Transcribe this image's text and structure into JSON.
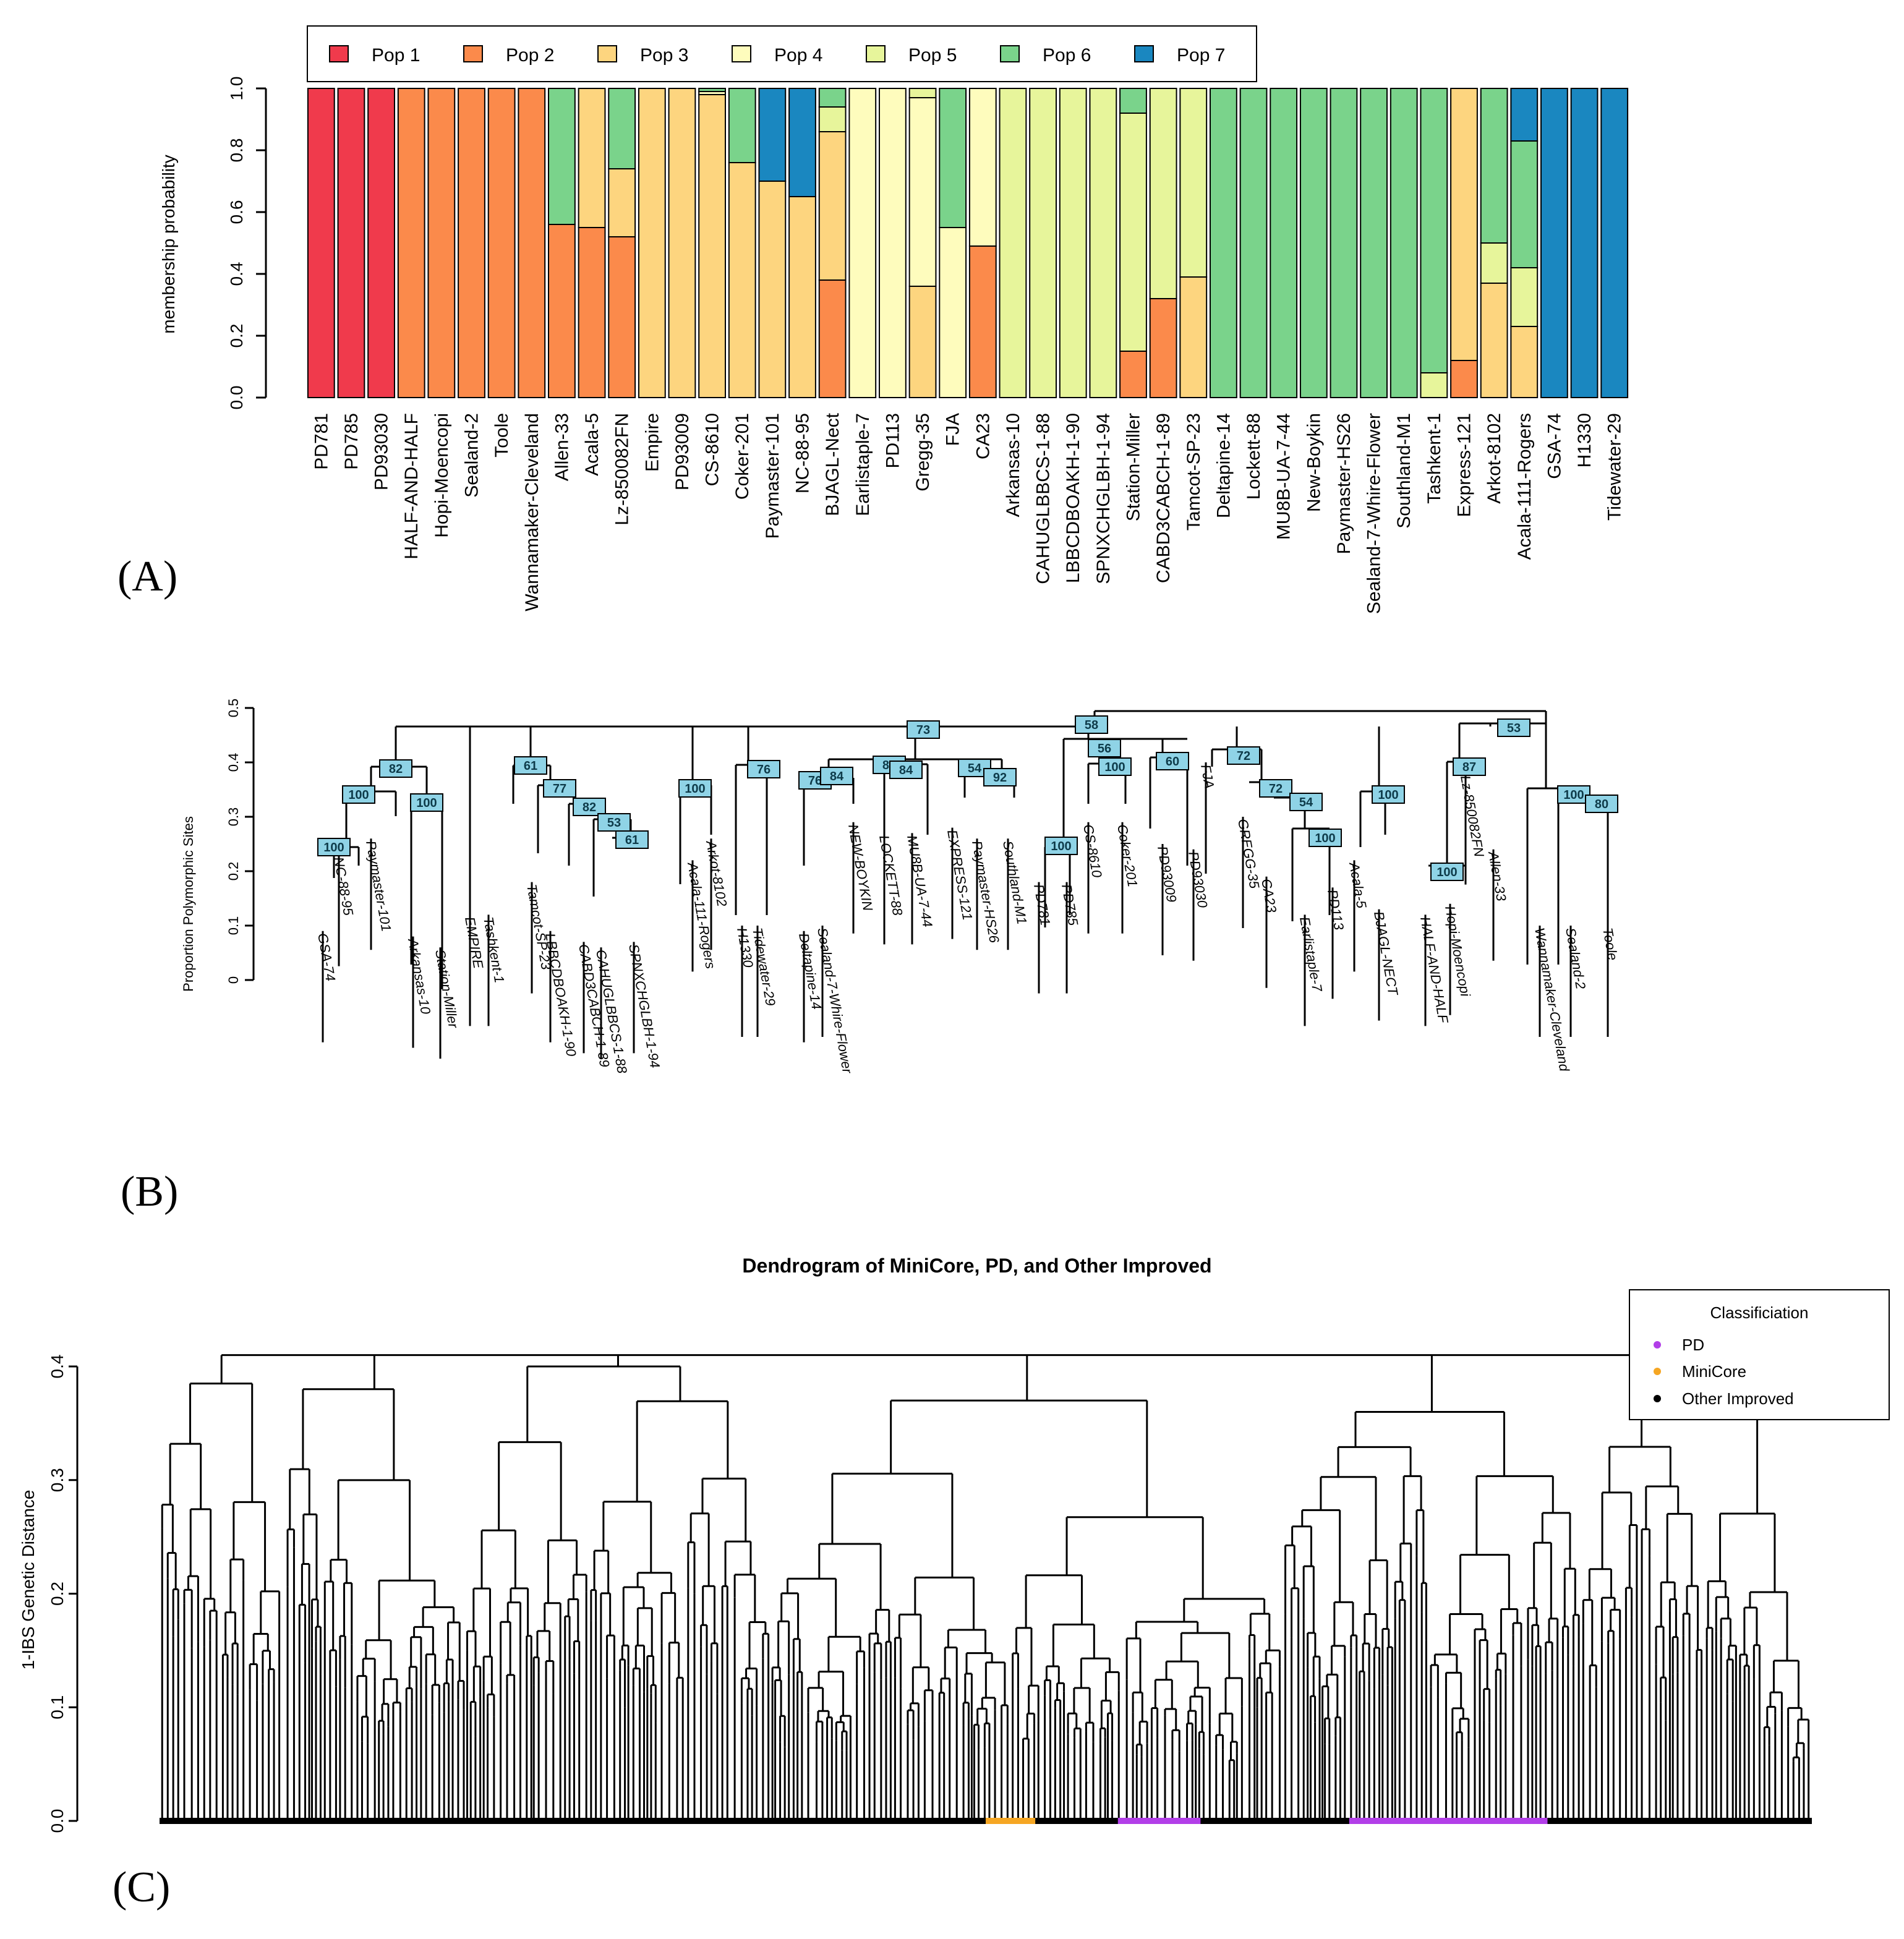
{
  "panel_labels": [
    "(A)",
    "(B)",
    "(C)"
  ],
  "chart_data": [
    {
      "type": "bar",
      "stacked": true,
      "ylabel": "membership probability",
      "ylim": [
        0,
        1
      ],
      "yticks": [
        "0.0",
        "0.2",
        "0.4",
        "0.6",
        "0.8",
        "1.0"
      ],
      "legend": {
        "position": "top",
        "entries": [
          "Pop 1",
          "Pop 2",
          "Pop 3",
          "Pop 4",
          "Pop 5",
          "Pop 6",
          "Pop 7"
        ]
      },
      "colors": [
        "#f03a4c",
        "#fb8a4b",
        "#fdd57f",
        "#fefcbd",
        "#e7f59b",
        "#7ad38b",
        "#1a87c0"
      ],
      "categories": [
        "PD781",
        "PD785",
        "PD93030",
        "HALF-AND-HALF",
        "Hopi-Moencopi",
        "Sealand-2",
        "Toole",
        "Wannamaker-Cleveland",
        "Allen-33",
        "Acala-5",
        "Lz-850082FN",
        "Empire",
        "PD93009",
        "CS-8610",
        "Coker-201",
        "Paymaster-101",
        "NC-88-95",
        "BJAGL-Nect",
        "Earlistaple-7",
        "PD113",
        "Gregg-35",
        "FJA",
        "CA23",
        "Arkansas-10",
        "CAHUGLBBCS-1-88",
        "LBBCDBOAKH-1-90",
        "SPNXCHGLBH-1-94",
        "Station-Miller",
        "CABD3CABCH-1-89",
        "Tamcot-SP-23",
        "Deltapine-14",
        "Lockett-88",
        "MU8B-UA-7-44",
        "New-Boykin",
        "Paymaster-HS26",
        "Sealand-7-Whire-Flower",
        "Southland-M1",
        "Tashkent-1",
        "Express-121",
        "Arkot-8102",
        "Acala-111-Rogers",
        "GSA-74",
        "H1330",
        "Tidewater-29"
      ],
      "series": [
        {
          "name": "Pop 1",
          "values": [
            1,
            1,
            1,
            0,
            0,
            0,
            0,
            0,
            0,
            0,
            0,
            0,
            0,
            0,
            0,
            0,
            0,
            0,
            0,
            0,
            0,
            0,
            0,
            0,
            0,
            0,
            0,
            0,
            0,
            0,
            0,
            0,
            0,
            0,
            0,
            0,
            0,
            0,
            0,
            0,
            0,
            0,
            0,
            0
          ]
        },
        {
          "name": "Pop 2",
          "values": [
            0,
            0,
            0,
            1,
            1,
            1,
            1,
            1,
            0.56,
            0.55,
            0.52,
            0,
            0,
            0,
            0,
            0,
            0,
            0.38,
            0,
            0,
            0,
            0,
            0.49,
            0,
            0,
            0,
            0,
            0.15,
            0.32,
            0,
            0,
            0,
            0,
            0,
            0,
            0,
            0,
            0,
            0.12,
            0,
            0,
            0,
            0,
            0
          ]
        },
        {
          "name": "Pop 3",
          "values": [
            0,
            0,
            0,
            0,
            0,
            0,
            0,
            0,
            0,
            0.45,
            0.22,
            1,
            1,
            0.98,
            0.76,
            0.7,
            0.65,
            0.48,
            0,
            0,
            0.36,
            0,
            0,
            0,
            0,
            0,
            0,
            0,
            0,
            0.39,
            0,
            0,
            0,
            0,
            0,
            0,
            0,
            0,
            0.88,
            0.37,
            0.23,
            0,
            0,
            0
          ]
        },
        {
          "name": "Pop 4",
          "values": [
            0,
            0,
            0,
            0,
            0,
            0,
            0,
            0,
            0,
            0,
            0,
            0,
            0,
            0.01,
            0,
            0,
            0,
            0,
            1,
            1,
            0.61,
            0.55,
            0.51,
            0,
            0,
            0,
            0,
            0,
            0,
            0,
            0,
            0,
            0,
            0,
            0,
            0,
            0,
            0,
            0,
            0,
            0,
            0,
            0,
            0
          ]
        },
        {
          "name": "Pop 5",
          "values": [
            0,
            0,
            0,
            0,
            0,
            0,
            0,
            0,
            0,
            0,
            0,
            0,
            0,
            0,
            0,
            0,
            0,
            0.08,
            0,
            0,
            0.03,
            0,
            0,
            1,
            1,
            1,
            1,
            0.77,
            0.68,
            0.61,
            0,
            0,
            0,
            0,
            0,
            0,
            0,
            0.08,
            0,
            0.13,
            0.19,
            0,
            0,
            0
          ]
        },
        {
          "name": "Pop 6",
          "values": [
            0,
            0,
            0,
            0,
            0,
            0,
            0,
            0,
            0.44,
            0,
            0.26,
            0,
            0,
            0.01,
            0.24,
            0,
            0,
            0.06,
            0,
            0,
            0,
            0.45,
            0,
            0,
            0,
            0,
            0,
            0.08,
            0,
            0,
            1,
            1,
            1,
            1,
            1,
            1,
            1,
            0.92,
            0,
            0.5,
            0.41,
            0,
            0,
            0
          ]
        },
        {
          "name": "Pop 7",
          "values": [
            0,
            0,
            0,
            0,
            0,
            0,
            0,
            0,
            0,
            0,
            0,
            0,
            0,
            0,
            0,
            0.3,
            0.35,
            0,
            0,
            0,
            0,
            0,
            0,
            0,
            0,
            0,
            0,
            0,
            0,
            0,
            0,
            0,
            0,
            0,
            0,
            0,
            0,
            0,
            0,
            0,
            0.17,
            1,
            1,
            1
          ]
        }
      ]
    },
    {
      "type": "dendrogram",
      "ylabel": "Proportion Polymorphic Sites",
      "ylim": [
        0,
        0.5
      ],
      "yticks": [
        "0",
        "0.1",
        "0.2",
        "0.3",
        "0.4",
        "0.5"
      ],
      "leaves": [
        "GSA-74",
        "NC-88-95",
        "Paymaster-101",
        "Arkansas-10",
        "Station-Miller",
        "EMPIRE",
        "Tashkent-1",
        "Tamcot-SP-23",
        "LBBCDBOAKH-1-90",
        "CABD3CABCH-1-89",
        "CAHUGLBBCS-1-88",
        "SPNXCHGLBH-1-94",
        "Acala-111-Rogers",
        "Arkot-8102",
        "H1330",
        "Tidewater-29",
        "Deltapine-14",
        "Sealand-7-Whire-Flower",
        "NEW-BOYKIN",
        "LOCKETT-88",
        "MU8B-UA-7-44",
        "EXPRESS-121",
        "Paymaster-HS26",
        "Southland-M1",
        "PD781",
        "PD785",
        "CS-8610",
        "Coker-201",
        "PD93009",
        "PD93030",
        "FJA",
        "GREGG-35",
        "CA23",
        "Earlistaple-7",
        "PD113",
        "Acala-5",
        "BJAGL-NECT",
        "HALF-AND-HALF",
        "Hopi-Moencopi",
        "Lz-850082FN",
        "Allen-33",
        "Wannamaker-Cleveland",
        "Sealand-2",
        "Toole"
      ],
      "leaf_heights": [
        0.09,
        0.23,
        0.26,
        0.08,
        0.06,
        0.12,
        0.12,
        0.18,
        0.09,
        0.07,
        0.06,
        0.07,
        0.22,
        0.26,
        0.1,
        0.1,
        0.09,
        0.1,
        0.29,
        0.27,
        0.27,
        0.28,
        0.26,
        0.26,
        0.18,
        0.18,
        0.29,
        0.29,
        0.25,
        0.24,
        0.4,
        0.3,
        0.19,
        0.12,
        0.17,
        0.22,
        0.13,
        0.12,
        0.14,
        0.38,
        0.24,
        0.1,
        0.1,
        0.1
      ],
      "bootstrap": [
        "100",
        "100",
        "82",
        "100",
        "61",
        "77",
        "82",
        "53",
        "61",
        "100",
        "76",
        "76",
        "84",
        "84",
        "84",
        "54",
        "92",
        "100",
        "56",
        "100",
        "60",
        "72",
        "72",
        "54",
        "100",
        "73",
        "58",
        "100",
        "100",
        "87",
        "53",
        "100",
        "80"
      ]
    },
    {
      "type": "dendrogram",
      "title": "Dendrogram of MiniCore, PD, and Other Improved",
      "ylabel": "1-IBS Genetic Distance",
      "ylim": [
        0,
        0.4
      ],
      "yticks": [
        "0.0",
        "0.1",
        "0.2",
        "0.3",
        "0.4"
      ],
      "legend": {
        "title": "Classificiation",
        "position": "top-right",
        "entries": [
          "PD",
          "MiniCore",
          "Other Improved"
        ]
      },
      "colors": {
        "PD": "#b23ee8",
        "MiniCore": "#f5a623",
        "Other Improved": "#000000"
      },
      "root_height": 0.41,
      "clusters": [
        {
          "from": 0.0,
          "to": 0.075,
          "height": 0.385
        },
        {
          "from": 0.075,
          "to": 0.185,
          "height": 0.38
        },
        {
          "from": 0.185,
          "to": 0.37,
          "height": 0.4
        },
        {
          "from": 0.37,
          "to": 0.68,
          "height": 0.37
        },
        {
          "from": 0.68,
          "to": 0.86,
          "height": 0.36
        },
        {
          "from": 0.86,
          "to": 1.0,
          "height": 0.355
        }
      ],
      "leaf_color_segments": [
        {
          "from": 0.5,
          "to": 0.53,
          "class": "MiniCore"
        },
        {
          "from": 0.58,
          "to": 0.63,
          "class": "PD"
        },
        {
          "from": 0.72,
          "to": 0.84,
          "class": "PD"
        }
      ]
    }
  ]
}
